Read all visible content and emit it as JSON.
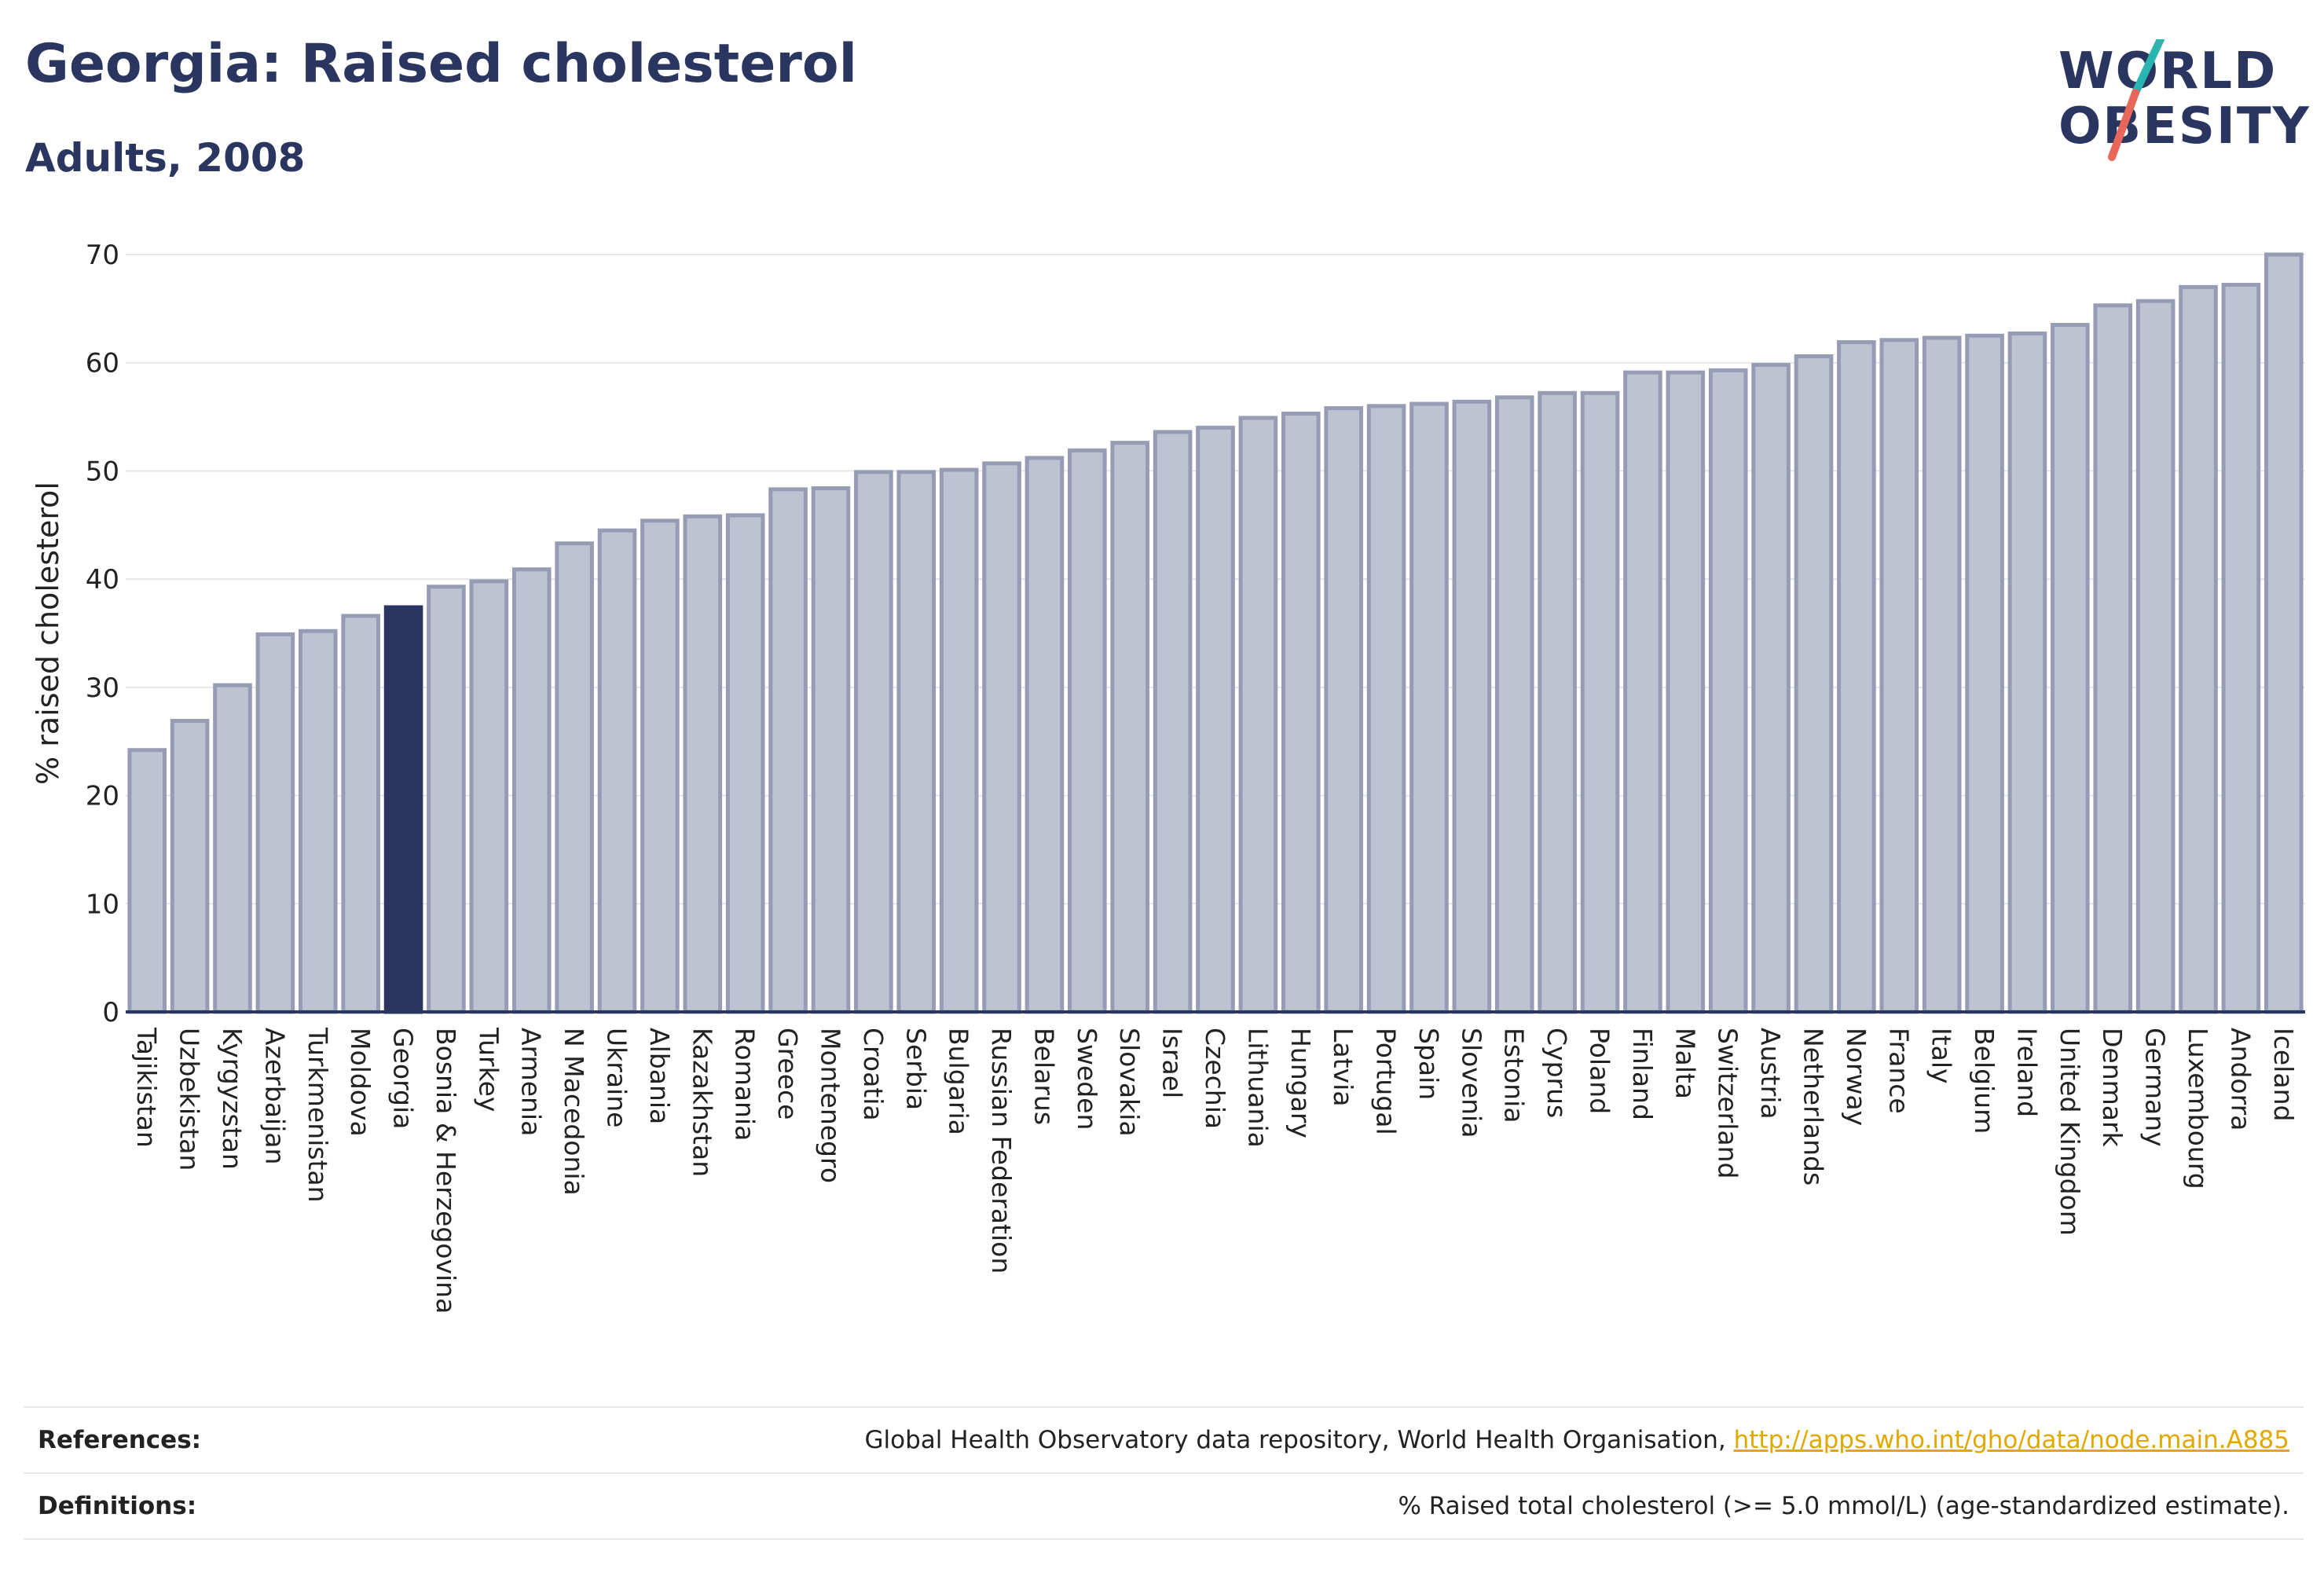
{
  "header": {
    "title": "Georgia: Raised cholesterol",
    "subtitle": "Adults, 2008"
  },
  "logo": {
    "line1": "WORLD",
    "line2": "OBESITY",
    "colors": {
      "text": "#2a3660",
      "slash_top": "#2bb5b0",
      "slash_bottom": "#e8675a"
    }
  },
  "chart_data": {
    "type": "bar",
    "title": "Georgia: Raised cholesterol",
    "subtitle": "Adults, 2008",
    "ylabel": "% raised cholesterol",
    "xlabel": "",
    "ylim": [
      0,
      70
    ],
    "yticks": [
      0,
      10,
      20,
      30,
      40,
      50,
      60,
      70
    ],
    "grid": true,
    "highlight": "Georgia",
    "colors": {
      "bar": "#bec3d1",
      "bar_edge": "#959cb4",
      "highlight": "#2a3660"
    },
    "categories": [
      "Tajikistan",
      "Uzbekistan",
      "Kyrgyzstan",
      "Azerbaijan",
      "Turkmenistan",
      "Moldova",
      "Georgia",
      "Bosnia & Herzegovina",
      "Turkey",
      "Armenia",
      "N Macedonia",
      "Ukraine",
      "Albania",
      "Kazakhstan",
      "Romania",
      "Greece",
      "Montenegro",
      "Croatia",
      "Serbia",
      "Bulgaria",
      "Russian Federation",
      "Belarus",
      "Sweden",
      "Slovakia",
      "Israel",
      "Czechia",
      "Lithuania",
      "Hungary",
      "Latvia",
      "Portugal",
      "Spain",
      "Slovenia",
      "Estonia",
      "Cyprus",
      "Poland",
      "Finland",
      "Malta",
      "Switzerland",
      "Austria",
      "Netherlands",
      "Norway",
      "France",
      "Italy",
      "Belgium",
      "Ireland",
      "United Kingdom",
      "Denmark",
      "Germany",
      "Luxembourg",
      "Andorra",
      "Iceland"
    ],
    "values": [
      24.2,
      26.9,
      30.2,
      34.9,
      35.2,
      36.6,
      37.4,
      39.3,
      39.8,
      40.9,
      43.3,
      44.5,
      45.4,
      45.8,
      45.9,
      48.3,
      48.4,
      49.9,
      49.9,
      50.1,
      50.7,
      51.2,
      51.9,
      52.6,
      53.6,
      54.0,
      54.9,
      55.3,
      55.8,
      56.0,
      56.2,
      56.4,
      56.8,
      57.2,
      57.2,
      59.1,
      59.1,
      59.3,
      59.8,
      60.6,
      61.9,
      62.1,
      62.3,
      62.5,
      62.7,
      63.5,
      65.3,
      65.7,
      67.0,
      67.2,
      70.0
    ]
  },
  "references": {
    "label": "References:",
    "text": "Global Health Observatory data repository, World Health Organisation, ",
    "link": "http://apps.who.int/gho/data/node.main.A885"
  },
  "definitions": {
    "label": "Definitions:",
    "text": "% Raised total cholesterol (>= 5.0 mmol/L) (age-standardized estimate)."
  }
}
